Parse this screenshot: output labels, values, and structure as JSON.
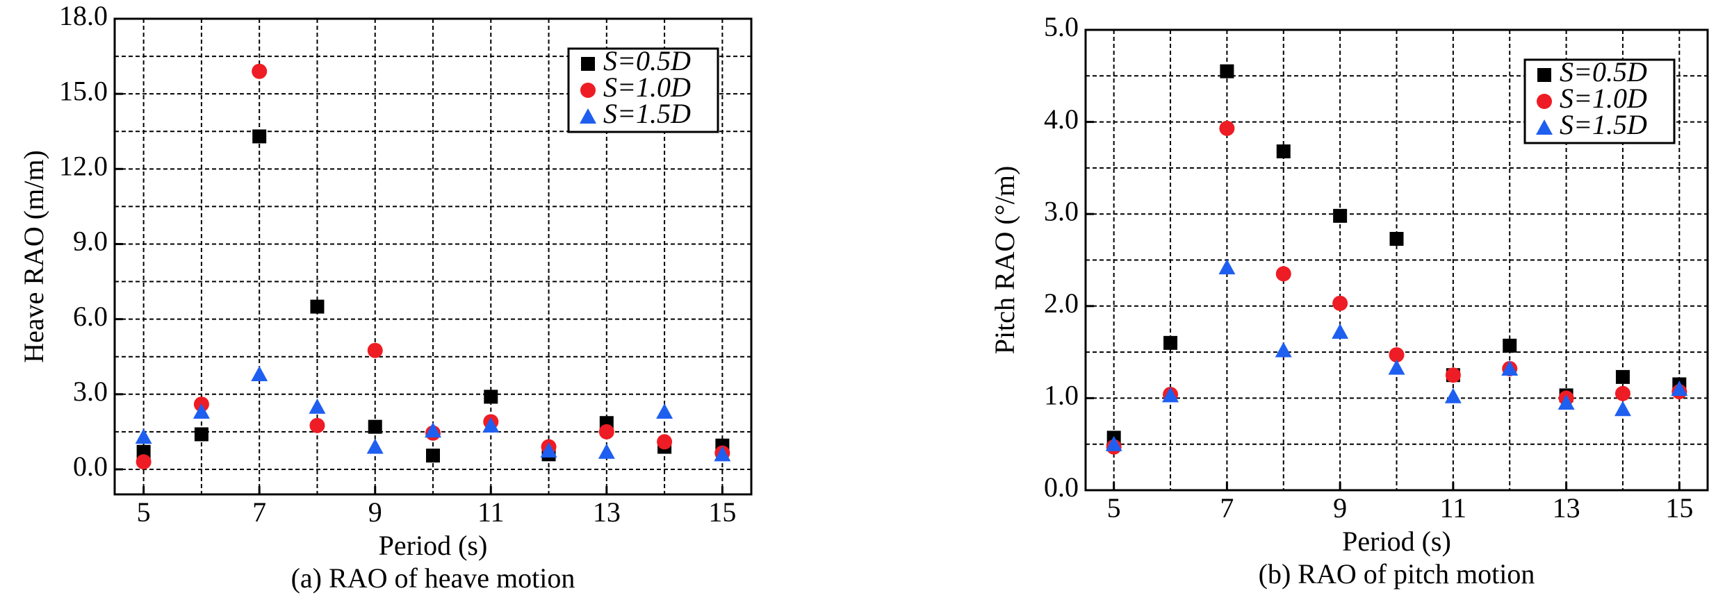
{
  "chart_data": [
    {
      "type": "scatter",
      "title": "(a) RAO of heave motion",
      "x_label": "Period (s)",
      "y_label": "Heave RAO (m/m)",
      "x": [
        5,
        6,
        7,
        8,
        9,
        10,
        11,
        12,
        13,
        14,
        15
      ],
      "series": [
        {
          "name": "S=0.5D",
          "color": "#000000",
          "marker": "square",
          "values": [
            0.7,
            1.4,
            13.3,
            6.5,
            1.7,
            0.55,
            2.9,
            0.6,
            1.85,
            0.9,
            0.95
          ]
        },
        {
          "name": "S=1.0D",
          "color": "#ee1c24",
          "marker": "circle",
          "values": [
            0.3,
            2.6,
            15.9,
            1.75,
            4.75,
            1.45,
            1.9,
            0.9,
            1.5,
            1.1,
            0.65
          ]
        },
        {
          "name": "S=1.5D",
          "color": "#1f5ff0",
          "marker": "triangle",
          "values": [
            1.3,
            2.3,
            3.8,
            2.5,
            0.9,
            1.55,
            1.75,
            0.75,
            0.7,
            2.3,
            0.6
          ]
        }
      ],
      "xlim": [
        4.5,
        15.5
      ],
      "ylim": [
        -1,
        18
      ],
      "xticks": [
        5,
        7,
        9,
        11,
        13,
        15
      ],
      "minor_xticks": [
        6,
        8,
        10,
        12,
        14
      ],
      "yticks": [
        {
          "value": 0,
          "label": "0.0"
        },
        {
          "value": 3,
          "label": "3.0"
        },
        {
          "value": 6,
          "label": "6.0"
        },
        {
          "value": 9,
          "label": "9.0"
        },
        {
          "value": 12,
          "label": "12.0"
        },
        {
          "value": 15,
          "label": "15.0"
        },
        {
          "value": 18,
          "label": "18.0"
        }
      ],
      "minor_yticks": [
        1.5,
        4.5,
        7.5,
        10.5,
        13.5,
        16.5
      ],
      "grid": true,
      "legend": "upper right"
    },
    {
      "type": "scatter",
      "title": "(b) RAO of pitch motion",
      "x_label": "Period (s)",
      "y_label": "Pitch RAO (°/m)",
      "x": [
        5,
        6,
        7,
        8,
        9,
        10,
        11,
        12,
        13,
        14,
        15
      ],
      "series": [
        {
          "name": "S=0.5D",
          "color": "#000000",
          "marker": "square",
          "values": [
            0.57,
            1.6,
            4.55,
            3.68,
            2.98,
            2.73,
            1.25,
            1.57,
            1.03,
            1.23,
            1.15
          ]
        },
        {
          "name": "S=1.0D",
          "color": "#ee1c24",
          "marker": "circle",
          "values": [
            0.47,
            1.04,
            3.93,
            2.35,
            2.03,
            1.47,
            1.25,
            1.32,
            1.0,
            1.05,
            1.07
          ]
        },
        {
          "name": "S=1.5D",
          "color": "#1f5ff0",
          "marker": "triangle",
          "values": [
            0.5,
            1.03,
            2.42,
            1.52,
            1.72,
            1.33,
            1.02,
            1.32,
            0.95,
            0.88,
            1.1
          ]
        }
      ],
      "xlim": [
        4.5,
        15.5
      ],
      "ylim": [
        0,
        5
      ],
      "xticks": [
        5,
        7,
        9,
        11,
        13,
        15
      ],
      "minor_xticks": [
        6,
        8,
        10,
        12,
        14
      ],
      "yticks": [
        {
          "value": 0,
          "label": "0.0"
        },
        {
          "value": 1,
          "label": "1.0"
        },
        {
          "value": 2,
          "label": "2.0"
        },
        {
          "value": 3,
          "label": "3.0"
        },
        {
          "value": 4,
          "label": "4.0"
        },
        {
          "value": 5,
          "label": "5.0"
        }
      ],
      "minor_yticks": [
        0.5,
        1.5,
        2.5,
        3.5,
        4.5
      ],
      "grid": true,
      "legend": "upper right"
    }
  ]
}
